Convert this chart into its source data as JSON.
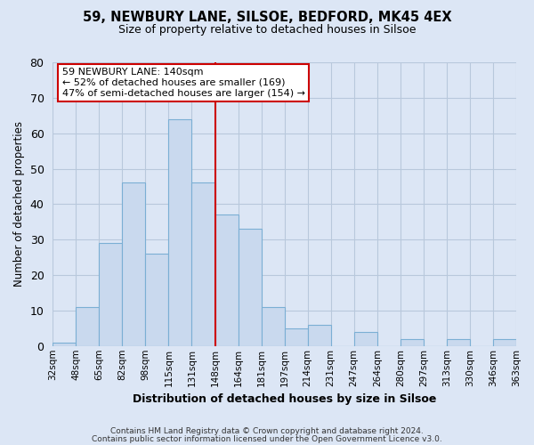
{
  "title": "59, NEWBURY LANE, SILSOE, BEDFORD, MK45 4EX",
  "subtitle": "Size of property relative to detached houses in Silsoe",
  "xlabel": "Distribution of detached houses by size in Silsoe",
  "ylabel": "Number of detached properties",
  "bar_labels": [
    "32sqm",
    "48sqm",
    "65sqm",
    "82sqm",
    "98sqm",
    "115sqm",
    "131sqm",
    "148sqm",
    "164sqm",
    "181sqm",
    "197sqm",
    "214sqm",
    "231sqm",
    "247sqm",
    "264sqm",
    "280sqm",
    "297sqm",
    "313sqm",
    "330sqm",
    "346sqm",
    "363sqm"
  ],
  "bar_values": [
    1,
    11,
    29,
    46,
    26,
    64,
    46,
    37,
    33,
    11,
    5,
    6,
    0,
    4,
    0,
    2,
    0,
    2,
    0,
    2
  ],
  "bar_color": "#c9d9ee",
  "bar_edge_color": "#7bafd4",
  "vline_color": "#cc0000",
  "annotation_title": "59 NEWBURY LANE: 140sqm",
  "annotation_line1": "← 52% of detached houses are smaller (169)",
  "annotation_line2": "47% of semi-detached houses are larger (154) →",
  "annotation_box_color": "#ffffff",
  "annotation_box_edge_color": "#cc0000",
  "ylim": [
    0,
    80
  ],
  "yticks": [
    0,
    10,
    20,
    30,
    40,
    50,
    60,
    70,
    80
  ],
  "footer1": "Contains HM Land Registry data © Crown copyright and database right 2024.",
  "footer2": "Contains public sector information licensed under the Open Government Licence v3.0.",
  "bg_color": "#dce6f5",
  "plot_bg_color": "#dce6f5",
  "grid_color": "#b8c8dc"
}
